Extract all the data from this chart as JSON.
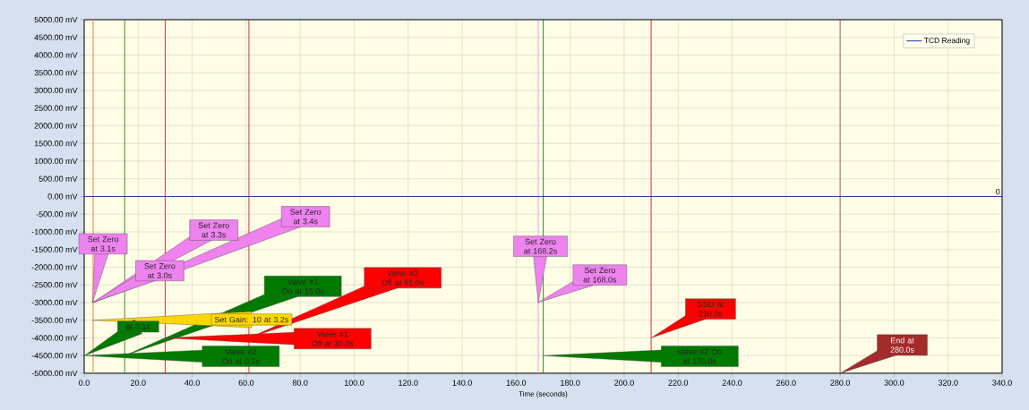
{
  "chart_data": {
    "type": "line",
    "xlabel": "Time (seconds)",
    "series": [
      {
        "name": "TCD Reading",
        "color": "#1f3f9f",
        "x": [
          0,
          340
        ],
        "values": [
          0,
          0
        ]
      }
    ],
    "xlim": [
      0,
      340
    ],
    "ylim": [
      -5000,
      5000
    ],
    "xticks": [
      {
        "value": 0,
        "label": "0.0"
      },
      {
        "value": 20,
        "label": "20.0"
      },
      {
        "value": 40,
        "label": "40.0"
      },
      {
        "value": 60,
        "label": "60.0"
      },
      {
        "value": 80,
        "label": "80.0"
      },
      {
        "value": 100,
        "label": "100.0"
      },
      {
        "value": 120,
        "label": "120.0"
      },
      {
        "value": 140,
        "label": "140.0"
      },
      {
        "value": 160,
        "label": "160.0"
      },
      {
        "value": 180,
        "label": "180.0"
      },
      {
        "value": 200,
        "label": "200.0"
      },
      {
        "value": 220,
        "label": "220.0"
      },
      {
        "value": 240,
        "label": "240.0"
      },
      {
        "value": 260,
        "label": "260.0"
      },
      {
        "value": 280,
        "label": "280.0"
      },
      {
        "value": 300,
        "label": "300.0"
      },
      {
        "value": 320,
        "label": "320.0"
      },
      {
        "value": 340,
        "label": "340.0"
      }
    ],
    "yticks": [
      {
        "value": 5000,
        "label": "5000.00 mV"
      },
      {
        "value": 4500,
        "label": "4500.00 mV"
      },
      {
        "value": 4000,
        "label": "4000.00 mV"
      },
      {
        "value": 3500,
        "label": "3500.00 mV"
      },
      {
        "value": 3000,
        "label": "3000.00 mV"
      },
      {
        "value": 2500,
        "label": "2500.00 mV"
      },
      {
        "value": 2000,
        "label": "2000.00 mV"
      },
      {
        "value": 1500,
        "label": "1500.00 mV"
      },
      {
        "value": 1000,
        "label": "1000.00 mV"
      },
      {
        "value": 500,
        "label": "500.00 mV"
      },
      {
        "value": 0,
        "label": "0.00 mV"
      },
      {
        "value": -500,
        "label": "-500.00 mV"
      },
      {
        "value": -1000,
        "label": "-1000.00 mV"
      },
      {
        "value": -1500,
        "label": "-1500.00 mV"
      },
      {
        "value": -2000,
        "label": "-2000.00 mV"
      },
      {
        "value": -2500,
        "label": "-2500.00 mV"
      },
      {
        "value": -3000,
        "label": "-3000.00 mV"
      },
      {
        "value": -3500,
        "label": "-3500.00 mV"
      },
      {
        "value": -4000,
        "label": "-4000.00 mV"
      },
      {
        "value": -4500,
        "label": "-4500.00 mV"
      },
      {
        "value": -5000,
        "label": "-5000.00 mV"
      }
    ],
    "grid": true,
    "legend": "top right",
    "ref_lines": [
      {
        "axis": "x",
        "value": 3.2,
        "color": "#ffc000"
      },
      {
        "axis": "x",
        "value": 3.4,
        "color": "#ee82ee"
      },
      {
        "axis": "x",
        "value": 15.0,
        "color": "#007a00"
      },
      {
        "axis": "x",
        "value": 30.0,
        "color": "#e00000"
      },
      {
        "axis": "x",
        "value": 61.0,
        "color": "#e00000"
      },
      {
        "axis": "x",
        "value": 168.2,
        "color": "#ee82ee"
      },
      {
        "axis": "x",
        "value": 170.0,
        "color": "#007a00"
      },
      {
        "axis": "x",
        "value": 210.0,
        "color": "#c00000"
      },
      {
        "axis": "x",
        "value": 280.0,
        "color": "#a0404f"
      }
    ],
    "annotations": [
      "Set Zero at 3.1s",
      "Set Zero at 3.0s",
      "Set Zero at 3.3s",
      "Set Zero at 3.4s",
      "Set Gain: 10 at 3.2s",
      "at 0.1s",
      "Valve #1 On at 15.0s",
      "Valve #2 On at 0.1s",
      "Valve #1 Off at 30.0s",
      "Valve #2 Off at 61.0s",
      "Set Zero at 168.2s",
      "Set Zero at 168.0s",
      "SSO at 210.0s",
      "Valve #2 On at 170.0s",
      "End at 280.0s",
      {
        "text": "0",
        "x": 340,
        "y": 0
      }
    ]
  }
}
